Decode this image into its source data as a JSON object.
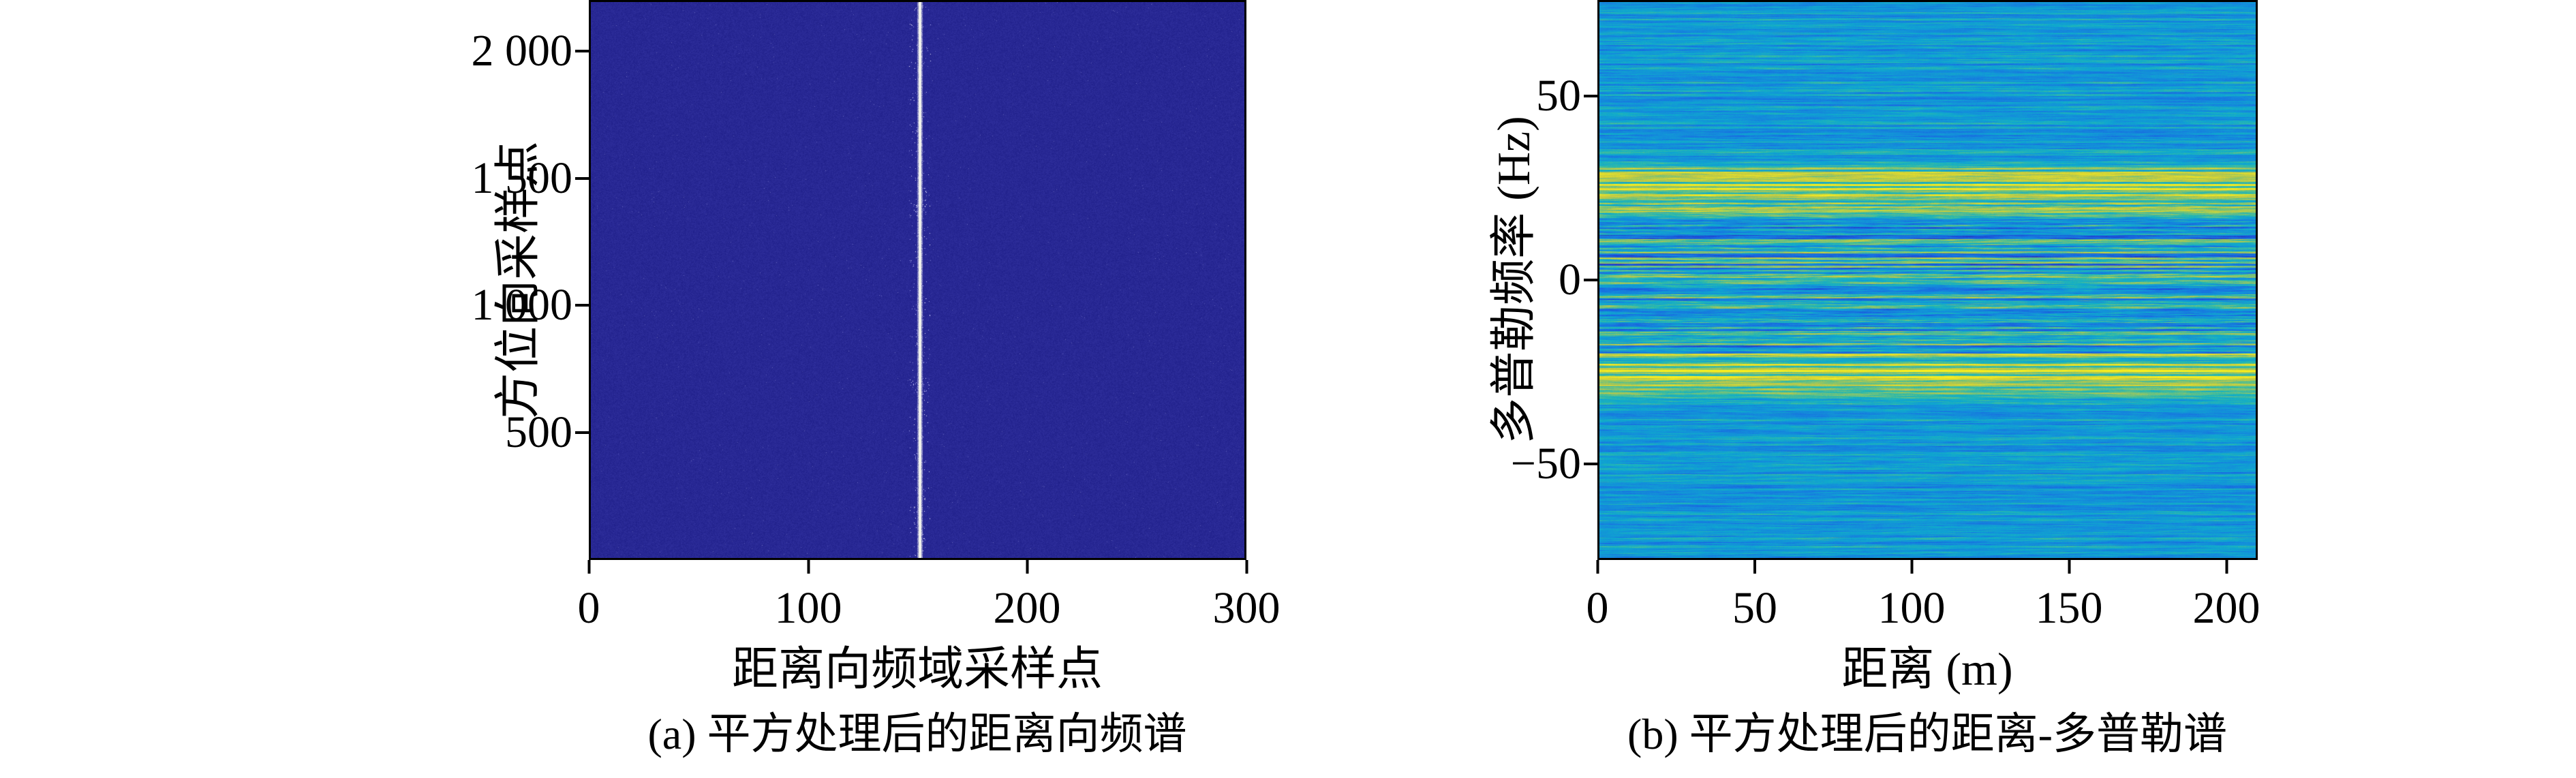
{
  "figure": {
    "background_color": "#ffffff",
    "text_color": "#000000"
  },
  "chart_data": [
    {
      "type": "heatmap",
      "panel": "a",
      "caption": "(a) 平方处理后的距离向频谱",
      "xlabel": "距离向频域采样点",
      "ylabel": "方位向采样点",
      "xlim": [
        0,
        300
      ],
      "ylim": [
        0,
        2200
      ],
      "xticks": [
        0,
        100,
        200,
        300
      ],
      "xtick_labels": [
        "0",
        "100",
        "200",
        "300"
      ],
      "yticks": [
        500,
        1000,
        1500,
        2000
      ],
      "ytick_labels": [
        "500",
        "1 000",
        "1 500",
        "2 000"
      ],
      "grid": false,
      "legend": "none",
      "colormap": "dark-blue",
      "background_color": "#28288f",
      "features": {
        "description": "Uniform dark indigo range-frequency spectrum with one bright white vertical line at range-frequency bin ≈151 spanning all azimuth samples; faint bright speckle halo within ≈±12 bins of the line, slightly denser near azimuth samples ≈680 and ≈1400.",
        "bright_vertical_line_x": 151,
        "line_color": "#f5f6ee",
        "speckle_halo_halfwidth_bins": 12,
        "speckle_dense_azimuth_rows": [
          680,
          1400
        ]
      }
    },
    {
      "type": "heatmap",
      "panel": "b",
      "caption": "(b) 平方处理后的距离-多普勒谱",
      "xlabel": "距离 (m)",
      "ylabel": "多普勒频率 (Hz)",
      "xlim": [
        0,
        210
      ],
      "ylim": [
        -76,
        76
      ],
      "xticks": [
        0,
        50,
        100,
        150,
        200
      ],
      "xtick_labels": [
        "0",
        "50",
        "100",
        "150",
        "200"
      ],
      "yticks": [
        -50,
        0,
        50
      ],
      "ytick_labels": [
        "−50",
        "0",
        "50"
      ],
      "grid": false,
      "legend": "none",
      "colormap": "parula",
      "features": {
        "description": "Cyan-teal range–Doppler map streaked with thin horizontal lines; strong yellow-green bands centred near ±26 Hz; dense alternating bright/dark horizontal stripes between about −20 and +20 Hz; weaker cyan/blue striations beyond ±35 Hz.",
        "background_level": 0.44,
        "bright_band_centers_hz": [
          26,
          -26
        ],
        "bright_band_halfwidth_hz": 6,
        "striped_zone_hz": [
          -21,
          21
        ]
      }
    }
  ]
}
